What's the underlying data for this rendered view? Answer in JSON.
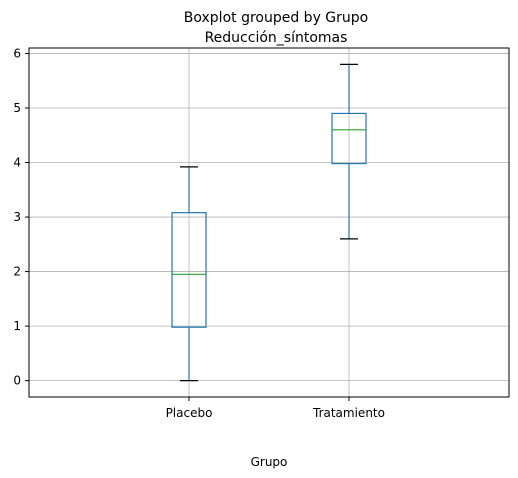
{
  "chart_data": {
    "type": "boxplot",
    "title": "Boxplot grouped by Grupo",
    "subtitle": "Reducción_síntomas",
    "xlabel": "Grupo",
    "ylabel": "",
    "ylim": [
      -0.3,
      6.1
    ],
    "yticks": [
      0,
      1,
      2,
      3,
      4,
      5,
      6
    ],
    "grid": true,
    "categories": [
      "Placebo",
      "Tratamiento"
    ],
    "boxes": [
      {
        "category": "Placebo",
        "whisker_low": 0.0,
        "q1": 0.98,
        "median": 1.95,
        "q3": 3.08,
        "whisker_high": 3.92
      },
      {
        "category": "Tratamiento",
        "whisker_low": 2.6,
        "q1": 3.98,
        "median": 4.6,
        "q3": 4.9,
        "whisker_high": 5.8
      }
    ],
    "colors": {
      "box": "#1f77b4",
      "median": "#2ca02c",
      "caps": "#000000",
      "grid": "#b0b0b0",
      "axes": "#000000"
    }
  }
}
